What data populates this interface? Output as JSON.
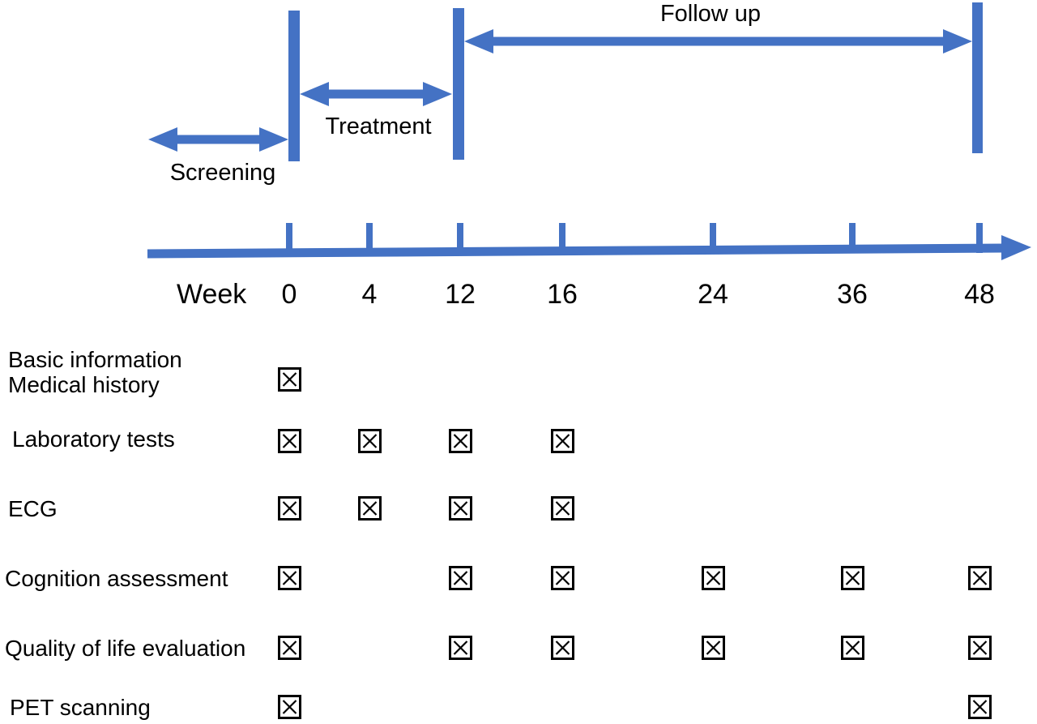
{
  "diagram": {
    "accent_color": "#4472C4",
    "text_color": "#000000",
    "phases": [
      {
        "label": "Screening",
        "to_week": "0"
      },
      {
        "label": "Treatment",
        "from_week": "0",
        "to_week": "12"
      },
      {
        "label": "Follow up",
        "from_week": "12",
        "to_week": "48"
      }
    ],
    "timeline": {
      "axis_label": "Week",
      "ticks": [
        "0",
        "4",
        "12",
        "16",
        "24",
        "36",
        "48"
      ]
    },
    "schedule": {
      "check_symbol": "boxed-x",
      "rows": [
        {
          "label_lines": [
            "Basic information",
            "Medical history"
          ],
          "checked_weeks": [
            "0"
          ]
        },
        {
          "label_lines": [
            "Laboratory tests"
          ],
          "checked_weeks": [
            "0",
            "4",
            "12",
            "16"
          ]
        },
        {
          "label_lines": [
            "ECG"
          ],
          "checked_weeks": [
            "0",
            "4",
            "12",
            "16"
          ]
        },
        {
          "label_lines": [
            "Cognition assessment"
          ],
          "checked_weeks": [
            "0",
            "12",
            "16",
            "24",
            "36",
            "48"
          ]
        },
        {
          "label_lines": [
            "Quality of life evaluation"
          ],
          "checked_weeks": [
            "0",
            "12",
            "16",
            "24",
            "36",
            "48"
          ]
        },
        {
          "label_lines": [
            "PET scanning"
          ],
          "checked_weeks": [
            "0",
            "48"
          ]
        }
      ]
    }
  }
}
